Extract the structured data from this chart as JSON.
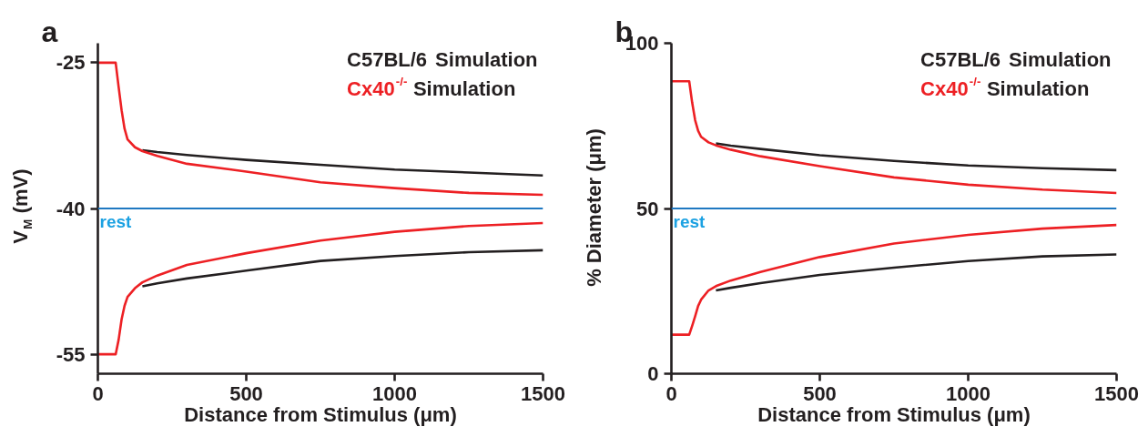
{
  "chart_data": [
    {
      "type": "line",
      "title": "a",
      "xlabel": "Distance from Stimulus (μm)",
      "ylabel": "V$_{M}$ (mV)",
      "xlim": [
        0,
        1500
      ],
      "xticks": [
        0,
        500,
        1000,
        1500
      ],
      "ylim": [
        -57,
        -23
      ],
      "yticks": [
        -25,
        -40,
        -55
      ],
      "grid": false,
      "legend": "top right",
      "marker": "none",
      "line_style": "solid",
      "ref_lines": [
        {
          "axis": "y",
          "value": -40,
          "label": "rest",
          "color": "#1f78c1"
        }
      ],
      "series": [
        {
          "name": "C57BL/6 Simulation",
          "color": "#231f20",
          "x": [
            150,
            200,
            300,
            500,
            750,
            1000,
            1250,
            1500
          ],
          "values": [
            -34.0,
            -34.2,
            -34.5,
            -35.0,
            -35.5,
            -36.0,
            -36.3,
            -36.6
          ]
        },
        {
          "color": "#231f20",
          "x": [
            150,
            200,
            300,
            500,
            750,
            1000,
            1250,
            1500
          ],
          "values": [
            -48.0,
            -47.7,
            -47.2,
            -46.4,
            -45.4,
            -44.9,
            -44.5,
            -44.3
          ]
        },
        {
          "name": "Cx40$^{-/-}$ Simulation",
          "color": "#ed2024",
          "x": [
            0,
            60,
            70,
            80,
            90,
            100,
            125,
            150,
            200,
            300,
            500,
            750,
            1000,
            1250,
            1500
          ],
          "values": [
            -25,
            -25,
            -27.5,
            -29.9,
            -31.8,
            -32.9,
            -33.7,
            -34.1,
            -34.6,
            -35.4,
            -36.2,
            -37.3,
            -37.9,
            -38.4,
            -38.6
          ]
        },
        {
          "color": "#ed2024",
          "x": [
            0,
            60,
            70,
            80,
            90,
            100,
            125,
            150,
            200,
            300,
            500,
            750,
            1000,
            1250,
            1500
          ],
          "values": [
            -55,
            -55,
            -53.5,
            -51.4,
            -50.0,
            -49.1,
            -48.2,
            -47.6,
            -46.9,
            -45.8,
            -44.6,
            -43.3,
            -42.4,
            -41.8,
            -41.5
          ]
        }
      ]
    },
    {
      "type": "line",
      "title": "b",
      "xlabel": "Distance from Stimulus (μm)",
      "ylabel": "% Diameter (μm)",
      "xlim": [
        0,
        1500
      ],
      "xticks": [
        0,
        500,
        1000,
        1500
      ],
      "ylim": [
        0,
        100
      ],
      "yticks": [
        0,
        50,
        100
      ],
      "grid": false,
      "legend": "top right",
      "marker": "none",
      "line_style": "solid",
      "ref_lines": [
        {
          "axis": "y",
          "value": 50,
          "label": "rest",
          "color": "#1f78c1"
        }
      ],
      "series": [
        {
          "name": "C57BL/6 Simulation",
          "color": "#231f20",
          "x": [
            150,
            200,
            300,
            500,
            750,
            1000,
            1250,
            1500
          ],
          "values": [
            69.7,
            69.0,
            68.0,
            66.1,
            64.4,
            63.0,
            62.2,
            61.6
          ]
        },
        {
          "color": "#231f20",
          "x": [
            150,
            200,
            300,
            500,
            750,
            1000,
            1250,
            1500
          ],
          "values": [
            25.2,
            26.0,
            27.4,
            29.9,
            32.1,
            34.1,
            35.5,
            36.1
          ]
        },
        {
          "name": "Cx40$^{-/-}$ Simulation",
          "color": "#ed2024",
          "x": [
            0,
            60,
            70,
            80,
            90,
            100,
            125,
            150,
            200,
            300,
            500,
            750,
            1000,
            1250,
            1500
          ],
          "values": [
            88.5,
            88.5,
            82,
            76.7,
            73.5,
            71.7,
            70.0,
            69.1,
            67.8,
            65.8,
            62.8,
            59.4,
            57.2,
            55.7,
            54.7
          ]
        },
        {
          "color": "#ed2024",
          "x": [
            0,
            60,
            70,
            80,
            90,
            100,
            125,
            150,
            200,
            300,
            500,
            750,
            1000,
            1250,
            1500
          ],
          "values": [
            11.8,
            11.8,
            14.5,
            17.4,
            20.5,
            22.4,
            25.2,
            26.5,
            28.2,
            30.8,
            35.3,
            39.4,
            42.0,
            43.9,
            45.0
          ]
        }
      ]
    }
  ]
}
